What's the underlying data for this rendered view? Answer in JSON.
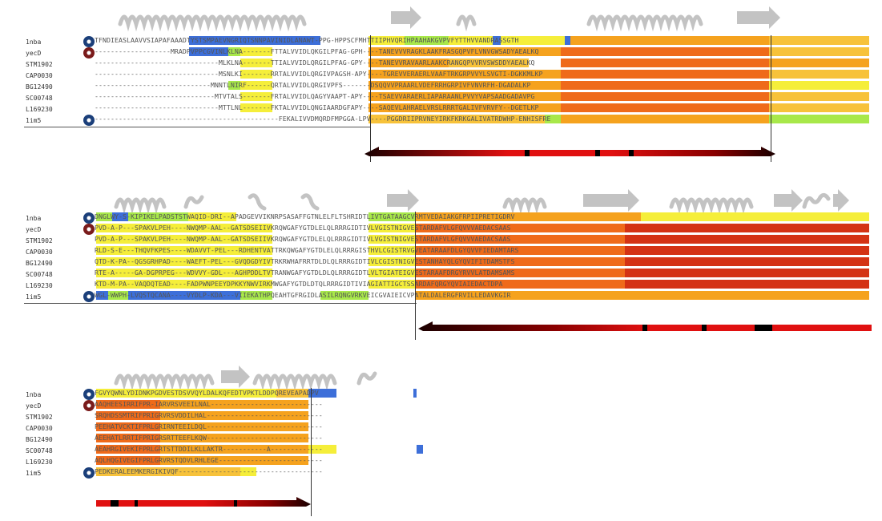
{
  "colors": {
    "helix": "#c9c9c9",
    "yellow": "#f5ee3a",
    "green": "#a8e84a",
    "blue": "#3d6fd9",
    "orange": "#f5a21e",
    "orange_light": "#f7c23a",
    "red_orange": "#ef6a1a",
    "dark_red": "#d43214",
    "bar_red": "#e01010",
    "bar_black": "#1a0000"
  },
  "names": [
    "1nba",
    "yecD",
    "STM1902",
    "CAP0030",
    "BG12490",
    "SC00748",
    "L169230",
    "1im5"
  ],
  "blocks": [
    {
      "rows": [
        "TFNDIEASLAAVVSIAPAFAAADTYSTSMPAEVNGRIQTSNNPAVINIDLANAWT-PPG-HPPSCFMHTTIIPHVQRIHPAAHAKGVPVFYTTHVVANDRASSGTH",
        "-------------------MRADPVPPCGVINLKLNA-------FTTALVVIDLQKGILPFAG-GPH----TANEVVVRAGKLAAKFRASGQPVFLVNVGWSADYAEALKQ",
        "-------------------------------MLKLNA-------TTIALVVIDLQRGILPFAG-GPY----TANEVVRAVAARLAAKCRANGQPVVRVSWSDDYAEALKQ",
        "-------------------------------MSNLKI-------RRTALVVIDLQRGIVPAGSH-APY----TGREVVERAERLVAAFTRKGRPVVYLSVGTI-DGKKMLKP",
        "-----------------------------MNNTLNIRF------QRTALVVIDLQRGIVPFS-------DSQQVVPRAARLVDEFRRHGRPIVFVNVRFH-DGADALKP",
        "------------------------------MTVTALS-------FRTALVVIDLQAGYVAAPT-APY----TSAEVVARAERLIAPARAANLPVVYVAPSAADGADAVPG",
        "-------------------------------MTTLNL-------FKTALVVIDLQNGIAARDGFAPY----SAQEVLAHRAELVRSLRRRTGALIVFVRVFY--DGETLKP",
        "----------------------------------------------FEKALIVVDMQRDFMPGGA-LPV----PGGDRIIPRVNEYIRKFKRKGALIVATRDWHP-ENHISFRE"
      ]
    },
    {
      "rows": [
        "DNGLWY-S-KIPIKELPADSTSTWAQID-DRI--APADGEVVIKNRPSASAFFGTNLELFLTSHRIDTLIVTGATAAGCVRMTVEDAIAKGFRPIIPRETIGDRV",
        "PVD-A-P---SPAKVLPEH----NWQMP-AAL--GATSDSEIIVKRQWGAFYGTDLELQLRRRGIDTIVLVGISTNIGVESTARDAFVLGFQVVVAEDACSAAS",
        "PVD-A-P---SPAKVLPEH----NWQMP-AAL--GATSDSEIIVKRQWGAFYGTDLELQLRRRGIDTIVLVGISTNIGVESTARDAFVLGFQVVVAEDACSAAS",
        "RLD-S-E---THQVFKPES----WDAVVT-PEL---RDHENTVATTRKQWGAFYGTDLELQLRRRGISTHVLCGISTRVGVEATARAAFDLGYQVVFIEDAMTARS",
        "QTD-K-PA--QGSGRHPAD----WAEFT-PEL---GVQDGDYIVTRKRWHAFRRTDLDLQLRRRGIDTIVLCGISTNIGVESTANHAYQLGYQVIFITDAMSTFS",
        "RTE-A-----GA-DGPRPEG---WDVVY-GDL---AGHPDDLTVTRANWGAFYGTDLDLQLRRRGIDTLVLTGIATEIGVESTARAAFDRGYRVVLATDAMSAMS",
        "KTD-M-PA--VAQDQTEAD----FADPWNPEEYDPKKYNWVIRKMWGAFYGTDLDTQLRRRGIDTIVIAGIATTIGCTSSARDAFQRGYQVIAIEDACTDPA",
        "WGL-WWPH-LVQSTQCANA----VYDLP-KDA---VIIEKATHPQEAHTGFRGIDLASILRQNGVRKVEICGVAIEICVPATALDALERGFRVILLEDAVKGIR"
      ]
    },
    {
      "rows": [
        "FGVYQWNLYDIDNKPGDVESTDSVVQYLDALKQFEDTVPKTLDDPQREVEAPADPV",
        "AAQHEESIRRIFPR-IARVRSVEEILNAL----------------------------",
        "SRQHDSSMTRIFPRIGRVRSVDDILHAL-----------------------------",
        "PEEHATVCKTIFPRLGRIRNTEEILDQL-----------------------------",
        "AEEHATLRRTIFPRIGRSRTTEEFLKQW-----------------------------",
        "AEAHRGIVEKIFPRLGRTSTTDDILKLLAKTR-----------A-------------",
        "AQLHQGIVEGIFPRLGRVRSTQDVLRHLEGE--------------------------",
        "PEDKERALEEMKERGIKIVQF------------------------------------"
      ]
    }
  ]
}
